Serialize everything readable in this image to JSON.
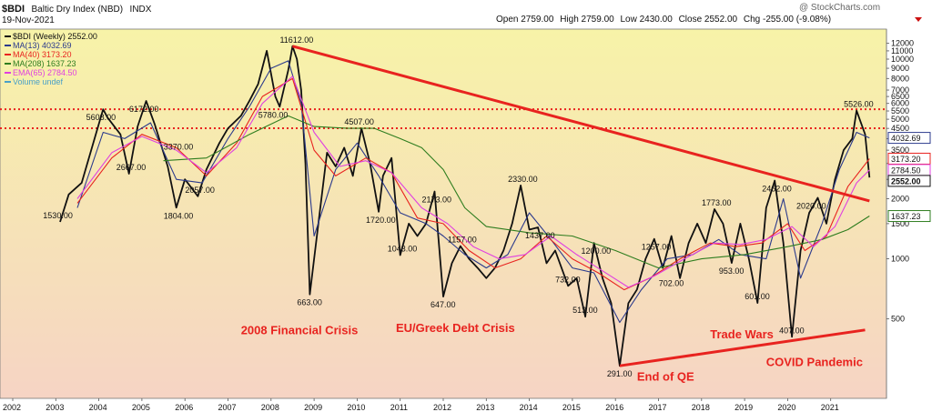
{
  "header": {
    "symbol": "$BDI",
    "name": "Baltic Dry Index (NBD)",
    "exchange": "INDX",
    "date": "19-Nov-2021",
    "open_label": "Open",
    "open": "2759.00",
    "high_label": "High",
    "high": "2759.00",
    "low_label": "Low",
    "low": "2430.00",
    "close_label": "Close",
    "close": "2552.00",
    "chg_label": "Chg",
    "chg": "-255.00 (-9.08%)",
    "watermark": "@ StockCharts.com"
  },
  "legend": [
    {
      "text": "$BDI (Weekly) 2552.00",
      "color": "#111111"
    },
    {
      "text": "MA(13) 4032.69",
      "color": "#2b3a8c"
    },
    {
      "text": "MA(40) 3173.20",
      "color": "#e8231f"
    },
    {
      "text": "MA(208) 1637.23",
      "color": "#2e7d1f"
    },
    {
      "text": "EMA(65) 2784.50",
      "color": "#e040e0"
    },
    {
      "text": "Volume undef",
      "color": "#4aa0c8"
    }
  ],
  "annotations": [
    {
      "text": "2008 Financial Crisis",
      "x": 2007.3,
      "y": 420
    },
    {
      "text": "EU/Greek Debt Crisis",
      "x": 2010.9,
      "y": 430
    },
    {
      "text": "End of QE",
      "x": 2016.5,
      "y": 245
    },
    {
      "text": "Trade Wars",
      "x": 2018.2,
      "y": 400
    },
    {
      "text": "COVID Pandemic",
      "x": 2019.5,
      "y": 290
    }
  ],
  "colors": {
    "price": "#111111",
    "ma13": "#2b3a8c",
    "ma40": "#e8231f",
    "ma208": "#2e7d1f",
    "ema65": "#e040e0",
    "trend": "#e8231f",
    "bg_top": "#f7f3a8",
    "bg_bottom": "#f6d4c4",
    "badge_border": "#2b3a8c"
  },
  "chart_data": {
    "type": "line",
    "title": "$BDI Baltic Dry Index (NBD) INDX",
    "xlim": [
      2002,
      2022
    ],
    "ylim": [
      200,
      13000
    ],
    "yscale": "log",
    "x_ticks": [
      "2002",
      "2003",
      "2004",
      "2005",
      "2006",
      "2007",
      "2008",
      "2009",
      "2010",
      "2011",
      "2012",
      "2013",
      "2014",
      "2015",
      "2016",
      "2017",
      "2018",
      "2019",
      "2020",
      "2021"
    ],
    "y_ticks": [
      500,
      1000,
      1500,
      2000,
      2500,
      3000,
      3500,
      4000,
      4500,
      5000,
      5500,
      6000,
      6500,
      7000,
      8000,
      9000,
      10000,
      11000,
      12000
    ],
    "grid": false,
    "legend_position": "top-left",
    "series": [
      {
        "name": "$BDI (Weekly)",
        "x": [
          2003.1,
          2003.3,
          2003.6,
          2003.9,
          2004.1,
          2004.2,
          2004.5,
          2004.7,
          2004.9,
          2005.1,
          2005.3,
          2005.6,
          2005.8,
          2006.0,
          2006.3,
          2006.5,
          2006.8,
          2007.0,
          2007.3,
          2007.5,
          2007.7,
          2007.9,
          2008.1,
          2008.2,
          2008.4,
          2008.5,
          2008.6,
          2008.7,
          2008.8,
          2008.9,
          2009.1,
          2009.3,
          2009.5,
          2009.7,
          2009.9,
          2010.1,
          2010.3,
          2010.5,
          2010.6,
          2010.8,
          2011.0,
          2011.2,
          2011.4,
          2011.6,
          2011.8,
          2012.0,
          2012.2,
          2012.4,
          2012.6,
          2012.8,
          2013.0,
          2013.2,
          2013.4,
          2013.6,
          2013.8,
          2014.0,
          2014.2,
          2014.4,
          2014.6,
          2014.9,
          2015.1,
          2015.3,
          2015.5,
          2015.7,
          2015.9,
          2016.1,
          2016.3,
          2016.5,
          2016.7,
          2016.9,
          2017.1,
          2017.3,
          2017.5,
          2017.7,
          2017.9,
          2018.1,
          2018.3,
          2018.5,
          2018.7,
          2018.9,
          2019.1,
          2019.3,
          2019.5,
          2019.7,
          2019.9,
          2020.1,
          2020.3,
          2020.5,
          2020.7,
          2020.9,
          2021.1,
          2021.3,
          2021.5,
          2021.6,
          2021.8,
          2021.9
        ],
        "values": [
          1530,
          2100,
          2400,
          4000,
          5608,
          5100,
          4200,
          2667,
          4600,
          6172,
          4700,
          2900,
          1804,
          2500,
          2057,
          2800,
          3800,
          4500,
          5200,
          6200,
          7500,
          11000,
          6500,
          5780,
          8800,
          11612,
          10000,
          7000,
          3000,
          663,
          1500,
          3400,
          2900,
          3600,
          2600,
          4507,
          3000,
          1720,
          2600,
          3200,
          1043,
          1500,
          1300,
          1500,
          2173,
          647,
          950,
          1157,
          1000,
          900,
          800,
          900,
          1100,
          1500,
          2330,
          1400,
          1437,
          950,
          1100,
          732,
          800,
          513,
          1200,
          800,
          600,
          291,
          600,
          702,
          1000,
          1257,
          900,
          1300,
          800,
          1200,
          1500,
          1200,
          1773,
          1500,
          953,
          1500,
          1000,
          601,
          1800,
          2462,
          1200,
          407,
          1100,
          1700,
          2020,
          1500,
          2500,
          3500,
          4000,
          5526,
          4200,
          2552
        ]
      },
      {
        "name": "MA(13)",
        "x": [
          2003.5,
          2004.1,
          2004.6,
          2005.2,
          2005.8,
          2006.4,
          2007.0,
          2007.5,
          2008.0,
          2008.4,
          2008.7,
          2009.0,
          2009.5,
          2010.0,
          2010.5,
          2011.0,
          2011.6,
          2012.0,
          2012.5,
          2013.0,
          2013.5,
          2014.0,
          2014.5,
          2015.0,
          2015.5,
          2016.1,
          2016.6,
          2017.2,
          2017.8,
          2018.4,
          2018.9,
          2019.5,
          2019.9,
          2020.3,
          2020.8,
          2021.2,
          2021.6,
          2021.9
        ],
        "values": [
          1800,
          4300,
          4000,
          4800,
          2500,
          2400,
          4000,
          5800,
          9000,
          9800,
          6000,
          1300,
          2800,
          3800,
          2600,
          1700,
          1500,
          1300,
          1050,
          900,
          1050,
          1700,
          1250,
          900,
          850,
          480,
          700,
          1000,
          1050,
          1250,
          1050,
          1000,
          2000,
          800,
          1500,
          2800,
          4300,
          4032.69
        ]
      },
      {
        "name": "MA(40)",
        "x": [
          2003.5,
          2004.3,
          2005.0,
          2005.8,
          2006.5,
          2007.2,
          2007.8,
          2008.5,
          2009.0,
          2009.5,
          2010.2,
          2010.8,
          2011.4,
          2012.0,
          2012.6,
          2013.2,
          2013.8,
          2014.4,
          2015.0,
          2015.6,
          2016.2,
          2016.8,
          2017.5,
          2018.2,
          2018.8,
          2019.4,
          2020.0,
          2020.4,
          2020.9,
          2021.4,
          2021.9
        ],
        "values": [
          1900,
          3200,
          4200,
          3600,
          2600,
          3800,
          6500,
          8000,
          3500,
          2600,
          3200,
          2700,
          1600,
          1500,
          1100,
          900,
          1000,
          1300,
          1000,
          850,
          700,
          800,
          1000,
          1200,
          1150,
          1200,
          1500,
          1100,
          1300,
          2300,
          3173.2
        ]
      },
      {
        "name": "MA(208)",
        "x": [
          2005.5,
          2006.5,
          2007.5,
          2008.4,
          2009.0,
          2009.8,
          2010.4,
          2011.0,
          2011.5,
          2012.0,
          2012.5,
          2013.0,
          2014.0,
          2015.0,
          2016.0,
          2017.0,
          2018.0,
          2019.0,
          2020.0,
          2020.8,
          2021.4,
          2021.9
        ],
        "values": [
          3100,
          3200,
          4200,
          5200,
          4600,
          4500,
          4500,
          4000,
          3600,
          2800,
          1800,
          1450,
          1350,
          1300,
          1100,
          900,
          1000,
          1050,
          1150,
          1250,
          1400,
          1637.23
        ]
      },
      {
        "name": "EMA(65)",
        "x": [
          2003.5,
          2004.3,
          2005.0,
          2005.8,
          2006.5,
          2007.2,
          2007.8,
          2008.5,
          2009.0,
          2009.6,
          2010.2,
          2010.8,
          2011.5,
          2012.1,
          2012.7,
          2013.3,
          2013.9,
          2014.5,
          2015.1,
          2015.7,
          2016.3,
          2016.9,
          2017.6,
          2018.3,
          2018.9,
          2019.5,
          2020.1,
          2020.6,
          2021.1,
          2021.6,
          2021.9
        ],
        "values": [
          2000,
          3400,
          4100,
          3500,
          2700,
          3600,
          6000,
          8200,
          4300,
          2900,
          3100,
          2700,
          1800,
          1500,
          1150,
          1000,
          1050,
          1300,
          1050,
          870,
          720,
          820,
          1000,
          1200,
          1180,
          1250,
          1450,
          1150,
          1450,
          2400,
          2784.5
        ]
      },
      {
        "name": "Trend",
        "x": [
          2008.5,
          2021.9
        ],
        "values": [
          11612,
          1950
        ]
      },
      {
        "name": "Trend",
        "x": [
          2016.1,
          2021.8
        ],
        "values": [
          291,
          440
        ]
      }
    ],
    "hlines": [
      5608,
      4507
    ],
    "data_labels": [
      {
        "text": "1530.00",
        "x": 2003.0,
        "y": 1530
      },
      {
        "text": "5608.00",
        "x": 2004.0,
        "y": 5608
      },
      {
        "text": "2667.00",
        "x": 2004.7,
        "y": 2667
      },
      {
        "text": "6172.00",
        "x": 2005.0,
        "y": 6172
      },
      {
        "text": "3370.00",
        "x": 2005.8,
        "y": 3370
      },
      {
        "text": "1804.00",
        "x": 2005.8,
        "y": 1804
      },
      {
        "text": "2057.00",
        "x": 2006.3,
        "y": 2057
      },
      {
        "text": "5780.00",
        "x": 2008.0,
        "y": 5780
      },
      {
        "text": "11612.00",
        "x": 2008.5,
        "y": 11612
      },
      {
        "text": "663.00",
        "x": 2008.9,
        "y": 663
      },
      {
        "text": "4507.00",
        "x": 2010.0,
        "y": 4507
      },
      {
        "text": "1720.00",
        "x": 2010.5,
        "y": 1720
      },
      {
        "text": "1043.00",
        "x": 2011.0,
        "y": 1043
      },
      {
        "text": "2173.00",
        "x": 2011.8,
        "y": 2173
      },
      {
        "text": "1157.00",
        "x": 2012.4,
        "y": 1157
      },
      {
        "text": "647.00",
        "x": 2012.0,
        "y": 647
      },
      {
        "text": "2330.00",
        "x": 2013.8,
        "y": 2330
      },
      {
        "text": "1437.00",
        "x": 2014.2,
        "y": 1437
      },
      {
        "text": "732.00",
        "x": 2014.9,
        "y": 732
      },
      {
        "text": "1200.00",
        "x": 2015.5,
        "y": 1200
      },
      {
        "text": "513.00",
        "x": 2015.3,
        "y": 513
      },
      {
        "text": "291.00",
        "x": 2016.1,
        "y": 291
      },
      {
        "text": "702.00",
        "x": 2017.3,
        "y": 702
      },
      {
        "text": "1257.00",
        "x": 2016.9,
        "y": 1257
      },
      {
        "text": "1773.00",
        "x": 2018.3,
        "y": 1773
      },
      {
        "text": "953.00",
        "x": 2018.7,
        "y": 953
      },
      {
        "text": "601.00",
        "x": 2019.3,
        "y": 601
      },
      {
        "text": "2462.00",
        "x": 2019.7,
        "y": 2462
      },
      {
        "text": "407.00",
        "x": 2020.1,
        "y": 407
      },
      {
        "text": "2020.00",
        "x": 2020.5,
        "y": 2020
      },
      {
        "text": "5526.00",
        "x": 2021.6,
        "y": 5526
      }
    ],
    "right_badges": [
      {
        "text": "4032.69",
        "value": 4032.69,
        "color": "#2b3a8c"
      },
      {
        "text": "3173.20",
        "value": 3173.2,
        "color": "#e8231f"
      },
      {
        "text": "2784.50",
        "value": 2784.5,
        "color": "#e040e0"
      },
      {
        "text": "2552.00",
        "value": 2552,
        "color": "#111111"
      },
      {
        "text": "1637.23",
        "value": 1637.23,
        "color": "#2e7d1f"
      }
    ]
  }
}
